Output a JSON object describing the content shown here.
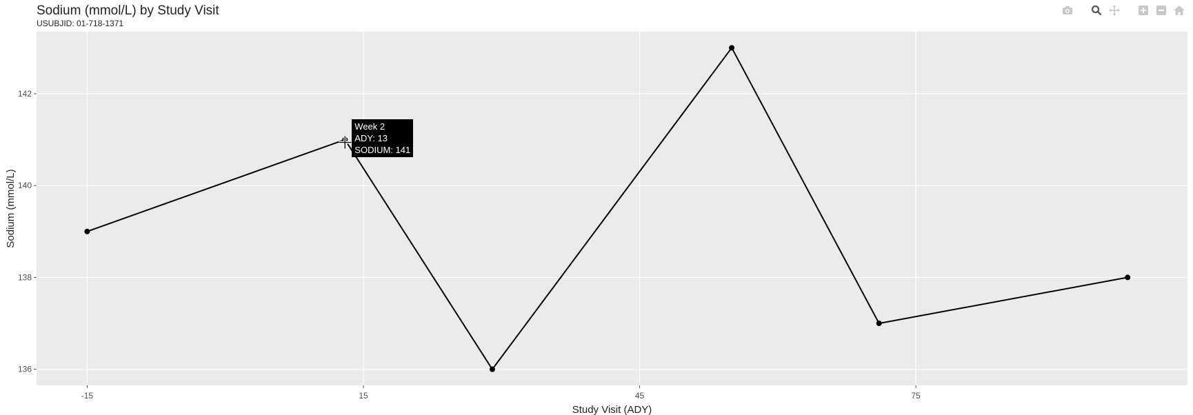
{
  "chart_data": {
    "type": "line",
    "title": "Sodium (mmol/L) by Study Visit",
    "subtitle": "USUBJID: 01-718-1371",
    "xlabel": "Study Visit (ADY)",
    "ylabel": "Sodium (mmol/L)",
    "xlim": [
      -20.5,
      104.5
    ],
    "ylim": [
      135.65,
      143.35
    ],
    "xticks": [
      -15,
      15,
      45,
      75
    ],
    "yticks": [
      136,
      138,
      140,
      142
    ],
    "grid": true,
    "legend": "none",
    "series": [
      {
        "x": [
          -15,
          13,
          29,
          55,
          71,
          98
        ],
        "y": [
          139,
          141,
          136,
          143,
          137,
          138
        ]
      }
    ],
    "colors": {
      "panel": "#ebebeb",
      "grid": "#ffffff",
      "line": "#000000",
      "point": "#000000"
    }
  },
  "hover": {
    "visit_label": "Week 2",
    "ady_text": "ADY: 13",
    "sodium_text": "SODIUM: 141",
    "x": 13,
    "y": 141
  },
  "modebar": {
    "icons": [
      "camera-icon",
      "zoom-icon",
      "pan-icon",
      "zoom-in-icon",
      "zoom-out-icon",
      "home-icon"
    ]
  }
}
